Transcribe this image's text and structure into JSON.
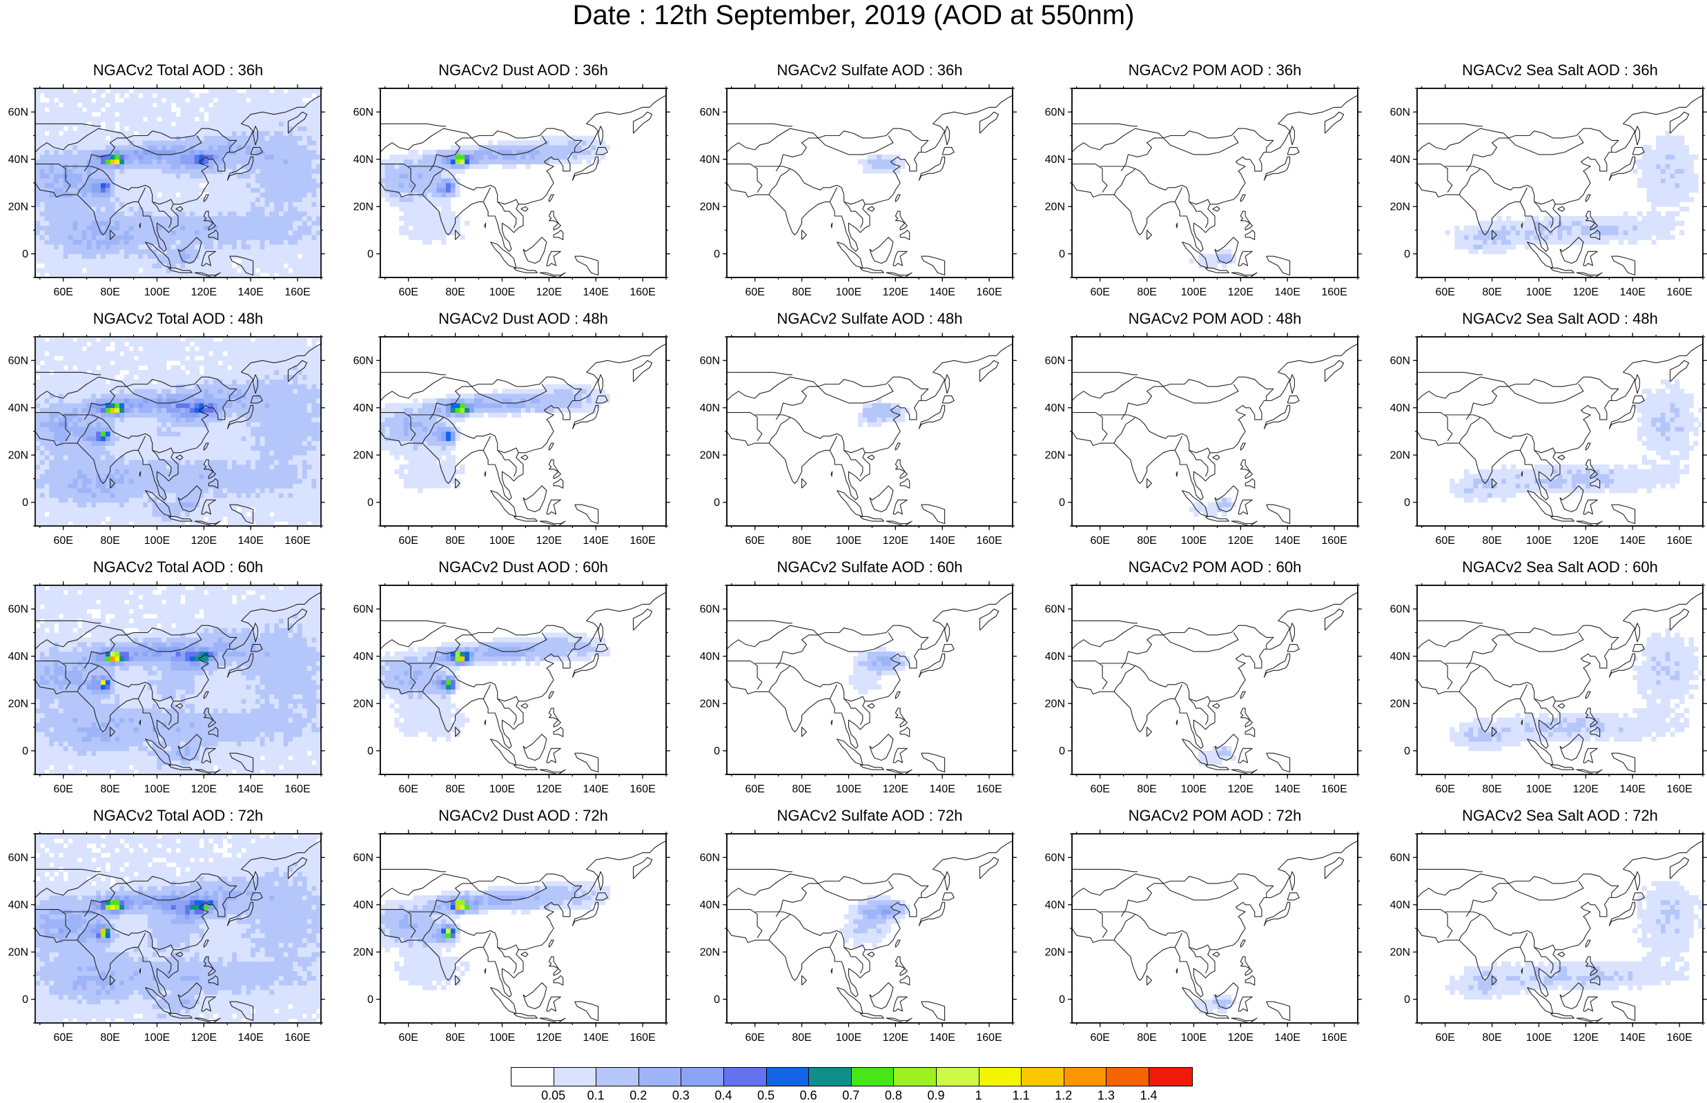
{
  "title": "Date : 12th September, 2019 (AOD at 550nm)",
  "map": {
    "lon_min": 48,
    "lon_max": 170,
    "lat_min": -10,
    "lat_max": 70,
    "lon_ticks": [
      "60E",
      "80E",
      "100E",
      "120E",
      "140E",
      "160E"
    ],
    "lat_ticks": [
      "60N",
      "40N",
      "20N",
      "0"
    ]
  },
  "panels": [
    {
      "title": "NGACv2 Total AOD : 36h",
      "species": "total",
      "hour": 36
    },
    {
      "title": "NGACv2 Dust AOD : 36h",
      "species": "dust",
      "hour": 36
    },
    {
      "title": "NGACv2 Sulfate AOD : 36h",
      "species": "sulfate",
      "hour": 36
    },
    {
      "title": "NGACv2 POM AOD : 36h",
      "species": "pom",
      "hour": 36
    },
    {
      "title": "NGACv2 Sea Salt AOD : 36h",
      "species": "seasalt",
      "hour": 36
    },
    {
      "title": "NGACv2 Total AOD : 48h",
      "species": "total",
      "hour": 48
    },
    {
      "title": "NGACv2 Dust AOD : 48h",
      "species": "dust",
      "hour": 48
    },
    {
      "title": "NGACv2 Sulfate AOD : 48h",
      "species": "sulfate",
      "hour": 48
    },
    {
      "title": "NGACv2 POM AOD : 48h",
      "species": "pom",
      "hour": 48
    },
    {
      "title": "NGACv2 Sea Salt AOD : 48h",
      "species": "seasalt",
      "hour": 48
    },
    {
      "title": "NGACv2 Total AOD : 60h",
      "species": "total",
      "hour": 60
    },
    {
      "title": "NGACv2 Dust AOD : 60h",
      "species": "dust",
      "hour": 60
    },
    {
      "title": "NGACv2 Sulfate AOD : 60h",
      "species": "sulfate",
      "hour": 60
    },
    {
      "title": "NGACv2 POM AOD : 60h",
      "species": "pom",
      "hour": 60
    },
    {
      "title": "NGACv2 Sea Salt AOD : 60h",
      "species": "seasalt",
      "hour": 60
    },
    {
      "title": "NGACv2 Total AOD : 72h",
      "species": "total",
      "hour": 72
    },
    {
      "title": "NGACv2 Dust AOD : 72h",
      "species": "dust",
      "hour": 72
    },
    {
      "title": "NGACv2 Sulfate AOD : 72h",
      "species": "sulfate",
      "hour": 72
    },
    {
      "title": "NGACv2 POM AOD : 72h",
      "species": "pom",
      "hour": 72
    },
    {
      "title": "NGACv2 Sea Salt  AOD : 72h",
      "species": "seasalt",
      "hour": 72
    }
  ],
  "colorbar": {
    "labels": [
      "0.05",
      "0.1",
      "0.2",
      "0.3",
      "0.4",
      "0.5",
      "0.6",
      "0.7",
      "0.8",
      "0.9",
      "1",
      "1.1",
      "1.2",
      "1.3",
      "1.4"
    ],
    "colors": [
      "#ffffff",
      "#d9e2ff",
      "#b5c6fb",
      "#9eb4f8",
      "#8aa3f5",
      "#6474ee",
      "#1464e8",
      "#0f8f8a",
      "#48e617",
      "#9cf21f",
      "#cdfa45",
      "#f5f500",
      "#fbc800",
      "#fb9600",
      "#f56400",
      "#f01a0a"
    ]
  }
}
